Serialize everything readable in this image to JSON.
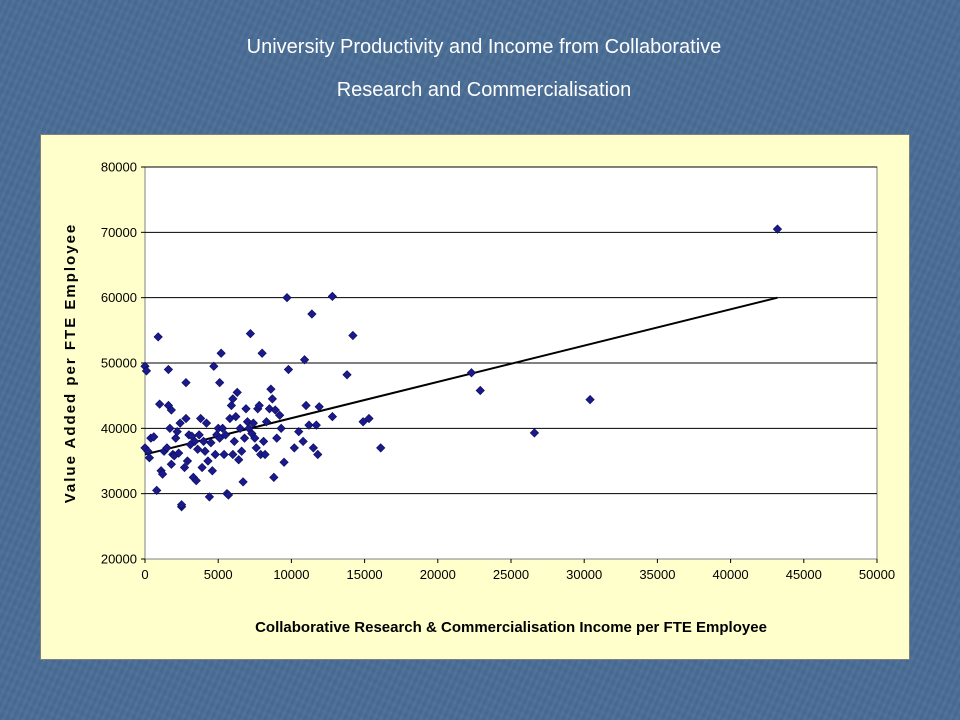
{
  "slide": {
    "title_line1": "University Productivity and Income from Collaborative",
    "title_line2": "Research and Commercialisation"
  },
  "colors": {
    "background": "#4a6e97",
    "chart_area": "#ffffcc",
    "marker": "#1a1a8c",
    "trendline": "#000000",
    "title_text": "#ffffff"
  },
  "chart_data": {
    "type": "scatter",
    "title": "",
    "xlabel": "Collaborative Research & Commercialisation Income per FTE Employee",
    "ylabel": "Value Added per FTE Employee",
    "xlim": [
      0,
      50000
    ],
    "ylim": [
      20000,
      80000
    ],
    "x_ticks": [
      "0",
      "5000",
      "10000",
      "15000",
      "20000",
      "25000",
      "30000",
      "35000",
      "40000",
      "45000",
      "50000"
    ],
    "y_ticks": [
      "20000",
      "30000",
      "40000",
      "50000",
      "60000",
      "70000",
      "80000"
    ],
    "grid": "horizontal",
    "legend": "none",
    "marker": "diamond",
    "trendline": {
      "x": [
        0,
        43200
      ],
      "y": [
        36000,
        60000
      ]
    },
    "points": [
      [
        0,
        49500
      ],
      [
        100,
        48800
      ],
      [
        0,
        37000
      ],
      [
        200,
        36500
      ],
      [
        300,
        35500
      ],
      [
        400,
        38500
      ],
      [
        600,
        38700
      ],
      [
        800,
        30500
      ],
      [
        900,
        54000
      ],
      [
        1000,
        43700
      ],
      [
        1100,
        33500
      ],
      [
        1200,
        33000
      ],
      [
        1300,
        36500
      ],
      [
        1500,
        37000
      ],
      [
        1600,
        49000
      ],
      [
        1600,
        43500
      ],
      [
        1700,
        40000
      ],
      [
        1800,
        42800
      ],
      [
        1800,
        34500
      ],
      [
        1900,
        36000
      ],
      [
        2000,
        35800
      ],
      [
        2100,
        38500
      ],
      [
        2200,
        39500
      ],
      [
        2300,
        36200
      ],
      [
        2400,
        40800
      ],
      [
        2500,
        28000
      ],
      [
        2500,
        28300
      ],
      [
        2700,
        34000
      ],
      [
        2800,
        47000
      ],
      [
        2800,
        41500
      ],
      [
        2900,
        35000
      ],
      [
        3000,
        39000
      ],
      [
        3100,
        37500
      ],
      [
        3200,
        38800
      ],
      [
        3300,
        32500
      ],
      [
        3400,
        38000
      ],
      [
        3500,
        32000
      ],
      [
        3600,
        36800
      ],
      [
        3700,
        39000
      ],
      [
        3800,
        41500
      ],
      [
        3900,
        34000
      ],
      [
        4000,
        38000
      ],
      [
        4100,
        36500
      ],
      [
        4200,
        40800
      ],
      [
        4300,
        35000
      ],
      [
        4400,
        29500
      ],
      [
        4500,
        37800
      ],
      [
        4600,
        33500
      ],
      [
        4700,
        49500
      ],
      [
        4800,
        36000
      ],
      [
        4900,
        39000
      ],
      [
        5000,
        40000
      ],
      [
        5100,
        38500
      ],
      [
        5100,
        47000
      ],
      [
        5200,
        51500
      ],
      [
        5300,
        40000
      ],
      [
        5400,
        36000
      ],
      [
        5500,
        39000
      ],
      [
        5600,
        30000
      ],
      [
        5700,
        29800
      ],
      [
        5800,
        41500
      ],
      [
        5900,
        43500
      ],
      [
        6000,
        44500
      ],
      [
        6000,
        36000
      ],
      [
        6100,
        38000
      ],
      [
        6200,
        41800
      ],
      [
        6300,
        45500
      ],
      [
        6400,
        35200
      ],
      [
        6500,
        40000
      ],
      [
        6600,
        36500
      ],
      [
        6700,
        31800
      ],
      [
        6800,
        38500
      ],
      [
        6900,
        43000
      ],
      [
        7000,
        41000
      ],
      [
        7100,
        40000
      ],
      [
        7200,
        54500
      ],
      [
        7300,
        39200
      ],
      [
        7400,
        40800
      ],
      [
        7500,
        38500
      ],
      [
        7600,
        37000
      ],
      [
        7700,
        43000
      ],
      [
        7800,
        43500
      ],
      [
        7900,
        36000
      ],
      [
        8000,
        51500
      ],
      [
        8100,
        38000
      ],
      [
        8200,
        36000
      ],
      [
        8300,
        41000
      ],
      [
        8500,
        43000
      ],
      [
        8600,
        46000
      ],
      [
        8700,
        44500
      ],
      [
        8800,
        32500
      ],
      [
        8900,
        42800
      ],
      [
        9000,
        38500
      ],
      [
        9200,
        42000
      ],
      [
        9300,
        40000
      ],
      [
        9500,
        34800
      ],
      [
        9700,
        60000
      ],
      [
        9800,
        49000
      ],
      [
        10200,
        37000
      ],
      [
        10500,
        39500
      ],
      [
        10800,
        38000
      ],
      [
        10900,
        50500
      ],
      [
        11000,
        43500
      ],
      [
        11200,
        40500
      ],
      [
        11400,
        57500
      ],
      [
        11500,
        37000
      ],
      [
        11700,
        40500
      ],
      [
        11800,
        36000
      ],
      [
        11900,
        43300
      ],
      [
        12800,
        60200
      ],
      [
        12800,
        41800
      ],
      [
        13800,
        48200
      ],
      [
        14200,
        54200
      ],
      [
        14900,
        41000
      ],
      [
        15300,
        41500
      ],
      [
        16100,
        37000
      ],
      [
        22300,
        48500
      ],
      [
        22900,
        45800
      ],
      [
        26600,
        39300
      ],
      [
        30400,
        44400
      ],
      [
        43200,
        70500
      ]
    ]
  }
}
